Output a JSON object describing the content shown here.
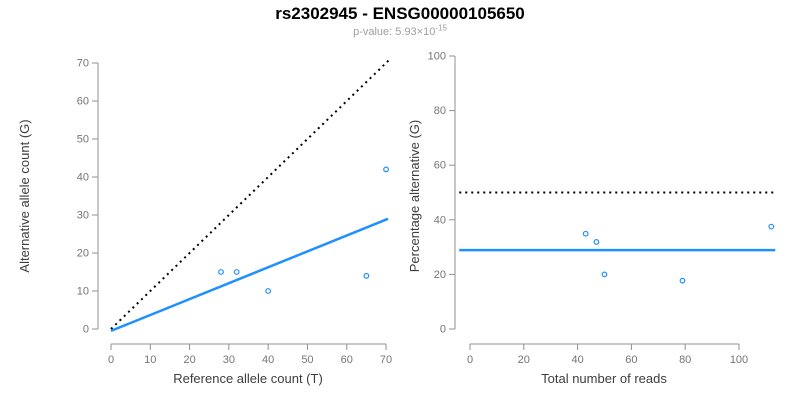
{
  "title": "rs2302945 - ENSG00000105650",
  "subtitle": {
    "base": "p-value: 5.93×10",
    "exponent": "-15"
  },
  "colors": {
    "accent_blue": "#1E90FF",
    "identity_line": "#000000",
    "axis_line": "#909090",
    "tick_label": "#757575",
    "axis_title": "#3d3d3d",
    "title": "#000000",
    "subtitle": "#9e9e9e",
    "background": "#ffffff",
    "point_stroke": "#1E90FF"
  },
  "chart_data": [
    {
      "id": "left",
      "type": "scatter",
      "title": "",
      "xlabel": "Reference allele count (T)",
      "ylabel": "Alternative allele count (G)",
      "xlim": [
        0,
        70
      ],
      "ylim": [
        0,
        70
      ],
      "xticks": [
        0,
        10,
        20,
        30,
        40,
        50,
        60,
        70
      ],
      "yticks": [
        0,
        10,
        20,
        30,
        40,
        50,
        60,
        70
      ],
      "grid": false,
      "legend": "none",
      "points": [
        [
          28,
          15
        ],
        [
          32,
          15
        ],
        [
          40,
          10
        ],
        [
          70,
          42
        ],
        [
          65,
          14
        ]
      ],
      "lines": [
        {
          "name": "identity-line",
          "style": "dotted",
          "color": "#000000",
          "width": 2,
          "x1": 0,
          "y1": 0,
          "x2": 71,
          "y2": 71
        },
        {
          "name": "regression-line",
          "style": "solid",
          "color": "#1E90FF",
          "width": 2.5,
          "x1": 0,
          "y1": -0.5,
          "x2": 70.5,
          "y2": 29
        }
      ]
    },
    {
      "id": "right",
      "type": "scatter",
      "title": "",
      "xlabel": "Total number of reads",
      "ylabel": "Percentage alternative (G)",
      "xlim": [
        0,
        100
      ],
      "ylim": [
        0,
        100
      ],
      "xticks": [
        0,
        20,
        40,
        60,
        80,
        100
      ],
      "yticks": [
        0,
        20,
        40,
        60,
        80,
        100
      ],
      "grid": false,
      "legend": "none",
      "points": [
        [
          43,
          34.9
        ],
        [
          47,
          31.9
        ],
        [
          50,
          20
        ],
        [
          112,
          37.5
        ],
        [
          79,
          17.7
        ]
      ],
      "lines": [
        {
          "name": "fifty-percent-line",
          "style": "dotted",
          "color": "#000000",
          "width": 2,
          "x1": -4,
          "y1": 50,
          "x2": 113.5,
          "y2": 50
        },
        {
          "name": "mean-percentage-line",
          "style": "solid",
          "color": "#1E90FF",
          "width": 2.5,
          "x1": -4,
          "y1": 28.9,
          "x2": 113.5,
          "y2": 28.9
        }
      ]
    }
  ]
}
